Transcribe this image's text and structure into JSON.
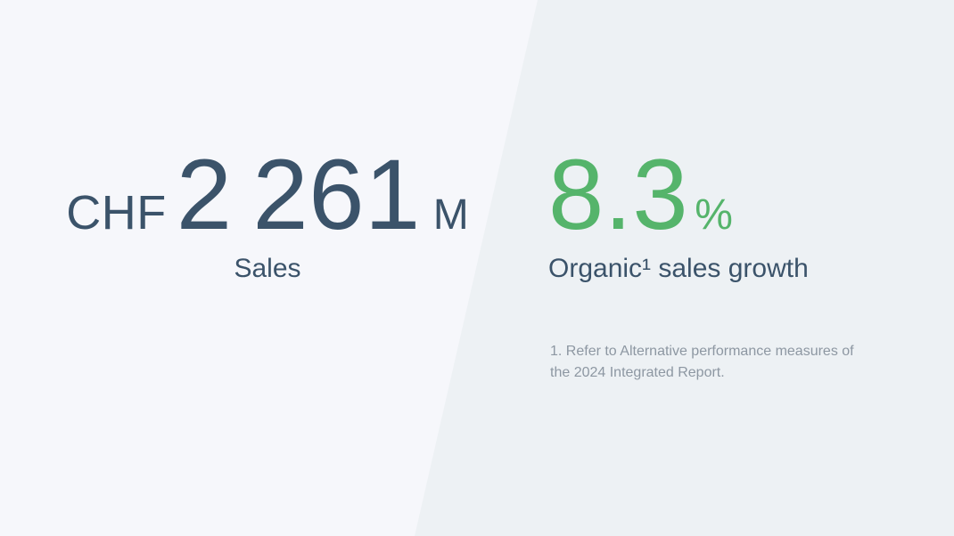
{
  "page": {
    "background_left_color": "#f6f7fb",
    "background_right_color": "#edf1f4",
    "accent_dark_color": "#3b536a",
    "accent_green_color": "#55b46b",
    "footnote_color": "#8d97a2"
  },
  "sales_stat": {
    "currency": "CHF",
    "value": "2 261",
    "unit": "M",
    "label": "Sales"
  },
  "growth_stat": {
    "value": "8.3",
    "unit": "%",
    "label": "Organic¹ sales growth"
  },
  "footnote": {
    "text": "1. Refer to Alternative performance measures of the 2024 Integrated Report."
  }
}
